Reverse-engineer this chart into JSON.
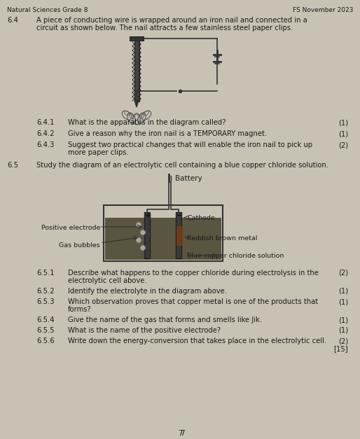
{
  "header_left": "Natural Sciences Grade 8",
  "header_right": "FS November 2023",
  "bg_color": "#c8c2b5",
  "text_color": "#1a1a1a",
  "page_number": "7",
  "sec64_num": "6.4",
  "sec64_text1": "A piece of conducting wire is wrapped around an iron nail and connected in a",
  "sec64_text2": "circuit as shown below. The nail attracts a few stainless steel paper clips.",
  "q641_num": "6.4.1",
  "q641_text": "What is the apparatus in the diagram called?",
  "q641_mark": "(1)",
  "q642_num": "6.4.2",
  "q642_text": "Give a reason why the iron nail is a TEMPORARY magnet.",
  "q642_mark": "(1)",
  "q643_num": "6.4.3",
  "q643_text1": "Suggest two practical changes that will enable the iron nail to pick up",
  "q643_text2": "more paper clips.",
  "q643_mark": "(2)",
  "sec65_num": "6.5",
  "sec65_text": "Study the diagram of an electrolytic cell containing a blue copper chloride solution.",
  "diag_battery": "Battery",
  "diag_pos_elec": "Positive electrode",
  "diag_cathode": "Cathode",
  "diag_gas": "Gas bubbles",
  "diag_reddish": "Reddish brown metal",
  "diag_blue": "Blue copper chloride solution",
  "q651_num": "6.5.1",
  "q651_text1": "Describe what happens to the copper chloride during electrolysis in the",
  "q651_text2": "electrolytic cell above.",
  "q651_mark": "(2)",
  "q652_num": "6.5.2",
  "q652_text": "Identify the electrolyte in the diagram above.",
  "q652_mark": "(1)",
  "q653_num": "6.5.3",
  "q653_text1": "Which observation proves that copper metal is one of the products that",
  "q653_text2": "forms?",
  "q653_mark": "(1)",
  "q654_num": "6.5.4",
  "q654_text": "Give the name of the gas that forms and smells like Jik.",
  "q654_mark": "(1)",
  "q655_num": "6.5.5",
  "q655_text": "What is the name of the positive electrode?",
  "q655_mark": "(1)",
  "q656_num": "6.5.6",
  "q656_text": "Write down the energy-conversion that takes place in the electrolytic cell.",
  "q656_mark1": "(2)",
  "q656_mark2": "[15]"
}
